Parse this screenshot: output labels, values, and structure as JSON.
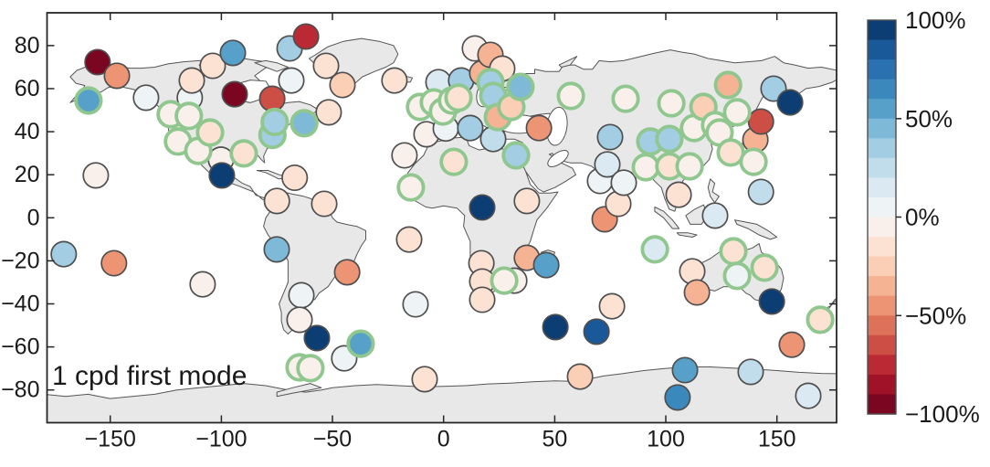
{
  "figure": {
    "annotation": "1 cpd first mode"
  },
  "axes": {
    "x_tick_labels": [
      "−150",
      "−100",
      "−50",
      "0",
      "50",
      "100",
      "150"
    ],
    "x_tick_values": [
      -150,
      -100,
      -50,
      0,
      50,
      100,
      150
    ],
    "y_tick_labels": [
      "80",
      "60",
      "40",
      "20",
      "0",
      "−20",
      "−40",
      "−60",
      "−80"
    ],
    "y_tick_values": [
      80,
      60,
      40,
      20,
      0,
      -20,
      -40,
      -60,
      -80
    ],
    "xlim": [
      -178.5,
      178.5
    ],
    "ylim": [
      -95.3,
      95.3
    ]
  },
  "colorbar": {
    "tick_labels": [
      "100%",
      "50%",
      "0%",
      "−50%",
      "−100%"
    ],
    "tick_values": [
      100,
      50,
      0,
      -50,
      -100
    ],
    "min": -100,
    "max": 100,
    "n_bins": 20,
    "palette_stops": [
      "#67001f",
      "#b2182b",
      "#d6604d",
      "#f4a582",
      "#fddbc7",
      "#f7f7f7",
      "#d1e5f0",
      "#92c5de",
      "#4393c3",
      "#2166ac",
      "#053061"
    ]
  },
  "map_colors": {
    "land": "#e8e8e8",
    "coast": "#555555",
    "ocean": "#ffffff",
    "frame": "#262626",
    "text": "#1a1a1a",
    "green_edge": "#8fc78f",
    "gray_edge": "#4f4f4f"
  },
  "chart_data": {
    "type": "scatter",
    "projection": "equirectangular world map",
    "title": "",
    "annotation": "1 cpd first mode",
    "value_unit": "%",
    "value_range": [
      -100,
      100
    ],
    "points": [
      {
        "lon": -170.9,
        "lat": -16.9,
        "value": 30,
        "edge": "gray"
      },
      {
        "lon": -159.8,
        "lat": 54.5,
        "value": 55,
        "edge": "green"
      },
      {
        "lon": -156.5,
        "lat": 19.7,
        "value": -5,
        "edge": "gray"
      },
      {
        "lon": -155.7,
        "lat": 72.3,
        "value": -95,
        "edge": "gray"
      },
      {
        "lon": -148.3,
        "lat": -21.1,
        "value": -42,
        "edge": "gray"
      },
      {
        "lon": -147.0,
        "lat": 66.0,
        "value": -45,
        "edge": "gray"
      },
      {
        "lon": -133.9,
        "lat": 55.8,
        "value": 8,
        "edge": "gray"
      },
      {
        "lon": -122.8,
        "lat": 48.1,
        "value": -6,
        "edge": "green"
      },
      {
        "lon": -119.5,
        "lat": 35.4,
        "value": -5,
        "edge": "green"
      },
      {
        "lon": -114.6,
        "lat": 47.3,
        "value": -8,
        "edge": "green"
      },
      {
        "lon": -114.2,
        "lat": 55.8,
        "value": 4,
        "edge": "gray"
      },
      {
        "lon": -113.3,
        "lat": 63.8,
        "value": -12,
        "edge": "gray"
      },
      {
        "lon": -110.4,
        "lat": 31.1,
        "value": -5,
        "edge": "green"
      },
      {
        "lon": -108.4,
        "lat": -30.9,
        "value": -5,
        "edge": "gray"
      },
      {
        "lon": -105.1,
        "lat": 39.6,
        "value": -15,
        "edge": "green"
      },
      {
        "lon": -103.9,
        "lat": 70.6,
        "value": -12,
        "edge": "gray"
      },
      {
        "lon": -100.2,
        "lat": 27.0,
        "value": -10,
        "edge": "gray"
      },
      {
        "lon": -99.8,
        "lat": 19.7,
        "value": 97,
        "edge": "gray"
      },
      {
        "lon": -94.8,
        "lat": 76.6,
        "value": 50,
        "edge": "gray"
      },
      {
        "lon": -94.0,
        "lat": 57.4,
        "value": -95,
        "edge": "gray"
      },
      {
        "lon": -89.9,
        "lat": 29.9,
        "value": -12,
        "edge": "green"
      },
      {
        "lon": -77.1,
        "lat": 55.3,
        "value": -65,
        "edge": "gray"
      },
      {
        "lon": -77.0,
        "lat": 38.5,
        "value": 30,
        "edge": "green"
      },
      {
        "lon": -76.0,
        "lat": 44.5,
        "value": 30,
        "edge": "green"
      },
      {
        "lon": -75.1,
        "lat": -14.7,
        "value": 45,
        "edge": "gray"
      },
      {
        "lon": -75.0,
        "lat": 7.8,
        "value": -20,
        "edge": "gray"
      },
      {
        "lon": -69.3,
        "lat": 78.7,
        "value": 35,
        "edge": "gray"
      },
      {
        "lon": -68.5,
        "lat": 63.8,
        "value": 8,
        "edge": "gray"
      },
      {
        "lon": -67.0,
        "lat": 18.6,
        "value": -12,
        "edge": "gray"
      },
      {
        "lon": -64.0,
        "lat": -36.0,
        "value": 5,
        "edge": "gray"
      },
      {
        "lon": -64.8,
        "lat": -47.4,
        "value": -8,
        "edge": "gray"
      },
      {
        "lon": -64.8,
        "lat": -69.5,
        "value": -2,
        "edge": "green"
      },
      {
        "lon": -61.9,
        "lat": 84.2,
        "value": -75,
        "edge": "gray"
      },
      {
        "lon": -62.7,
        "lat": 43.9,
        "value": 45,
        "edge": "green"
      },
      {
        "lon": -59.9,
        "lat": -69.9,
        "value": -2,
        "edge": "green"
      },
      {
        "lon": -57.0,
        "lat": -55.9,
        "value": 97,
        "edge": "gray"
      },
      {
        "lon": -53.7,
        "lat": 6.5,
        "value": -20,
        "edge": "gray"
      },
      {
        "lon": -52.9,
        "lat": 70.6,
        "value": -15,
        "edge": "gray"
      },
      {
        "lon": -51.7,
        "lat": 49.0,
        "value": -15,
        "edge": "gray"
      },
      {
        "lon": -45.5,
        "lat": 61.7,
        "value": -25,
        "edge": "gray"
      },
      {
        "lon": -44.7,
        "lat": -65.3,
        "value": 5,
        "edge": "gray"
      },
      {
        "lon": -43.4,
        "lat": -25.3,
        "value": -45,
        "edge": "gray"
      },
      {
        "lon": -37.3,
        "lat": -58.5,
        "value": 55,
        "edge": "green"
      },
      {
        "lon": -22.1,
        "lat": 63.8,
        "value": -20,
        "edge": "gray"
      },
      {
        "lon": -17.6,
        "lat": 29.0,
        "value": -5,
        "edge": "gray"
      },
      {
        "lon": -15.5,
        "lat": -10.1,
        "value": -12,
        "edge": "gray"
      },
      {
        "lon": -14.7,
        "lat": 14.1,
        "value": -10,
        "edge": "green"
      },
      {
        "lon": -12.6,
        "lat": -40.2,
        "value": 4,
        "edge": "gray"
      },
      {
        "lon": -10.6,
        "lat": 51.5,
        "value": -3,
        "edge": "green"
      },
      {
        "lon": -8.5,
        "lat": -75.0,
        "value": -12,
        "edge": "gray"
      },
      {
        "lon": -7.7,
        "lat": 38.8,
        "value": -8,
        "edge": "gray"
      },
      {
        "lon": -4.4,
        "lat": 53.6,
        "value": -3,
        "edge": "green"
      },
      {
        "lon": -2.3,
        "lat": 63.0,
        "value": 10,
        "edge": "gray"
      },
      {
        "lon": -0.3,
        "lat": 49.4,
        "value": -4,
        "edge": "green"
      },
      {
        "lon": 1.0,
        "lat": 41.5,
        "value": 8,
        "edge": "gray"
      },
      {
        "lon": 3.8,
        "lat": 54.5,
        "value": -10,
        "edge": "green"
      },
      {
        "lon": 4.6,
        "lat": 26.0,
        "value": -15,
        "edge": "green"
      },
      {
        "lon": 6.7,
        "lat": 55.8,
        "value": -15,
        "edge": "green"
      },
      {
        "lon": 7.9,
        "lat": 63.8,
        "value": 30,
        "edge": "gray"
      },
      {
        "lon": 12.0,
        "lat": 41.7,
        "value": 35,
        "edge": "gray"
      },
      {
        "lon": 14.1,
        "lat": 78.7,
        "value": -10,
        "edge": "gray"
      },
      {
        "lon": 17.0,
        "lat": -21.1,
        "value": -12,
        "edge": "gray"
      },
      {
        "lon": 17.4,
        "lat": 67.2,
        "value": -40,
        "edge": "gray"
      },
      {
        "lon": 17.4,
        "lat": 4.8,
        "value": 97,
        "edge": "gray"
      },
      {
        "lon": 17.4,
        "lat": -29.6,
        "value": -12,
        "edge": "gray"
      },
      {
        "lon": 17.4,
        "lat": -38.1,
        "value": -15,
        "edge": "gray"
      },
      {
        "lon": 21.1,
        "lat": 75.7,
        "value": -40,
        "edge": "gray"
      },
      {
        "lon": 21.1,
        "lat": 63.0,
        "value": 35,
        "edge": "green"
      },
      {
        "lon": 22.3,
        "lat": 56.6,
        "value": 30,
        "edge": "green"
      },
      {
        "lon": 22.3,
        "lat": 36.6,
        "value": 25,
        "edge": "gray"
      },
      {
        "lon": 24.4,
        "lat": 46.8,
        "value": -35,
        "edge": "green"
      },
      {
        "lon": 26.4,
        "lat": 69.3,
        "value": -20,
        "edge": "gray"
      },
      {
        "lon": 27.3,
        "lat": -29.2,
        "value": -2,
        "edge": "green"
      },
      {
        "lon": 30.5,
        "lat": 51.5,
        "value": -25,
        "edge": "green"
      },
      {
        "lon": 31.8,
        "lat": -29.2,
        "value": -5,
        "edge": "gray"
      },
      {
        "lon": 32.6,
        "lat": 29.0,
        "value": 30,
        "edge": "green"
      },
      {
        "lon": 34.6,
        "lat": 60.8,
        "value": 40,
        "edge": "green"
      },
      {
        "lon": 37.5,
        "lat": 7.8,
        "value": -15,
        "edge": "gray"
      },
      {
        "lon": 37.5,
        "lat": -18.6,
        "value": -40,
        "edge": "gray"
      },
      {
        "lon": 42.9,
        "lat": 41.7,
        "value": -45,
        "edge": "gray"
      },
      {
        "lon": 46.2,
        "lat": -22.0,
        "value": 50,
        "edge": "gray"
      },
      {
        "lon": 50.3,
        "lat": -50.8,
        "value": 97,
        "edge": "gray"
      },
      {
        "lon": 57.3,
        "lat": 56.6,
        "value": -5,
        "edge": "green"
      },
      {
        "lon": 61.4,
        "lat": -73.8,
        "value": -25,
        "edge": "gray"
      },
      {
        "lon": 68.8,
        "lat": -52.9,
        "value": 85,
        "edge": "gray"
      },
      {
        "lon": 70.4,
        "lat": 17.1,
        "value": 5,
        "edge": "gray"
      },
      {
        "lon": 72.5,
        "lat": -0.7,
        "value": -42,
        "edge": "gray"
      },
      {
        "lon": 73.7,
        "lat": 24.8,
        "value": 12,
        "edge": "gray"
      },
      {
        "lon": 74.9,
        "lat": 37.5,
        "value": 30,
        "edge": "gray"
      },
      {
        "lon": 75.8,
        "lat": -41.1,
        "value": -20,
        "edge": "gray"
      },
      {
        "lon": 78.6,
        "lat": 6.5,
        "value": -18,
        "edge": "gray"
      },
      {
        "lon": 81.1,
        "lat": 16.3,
        "value": 8,
        "edge": "gray"
      },
      {
        "lon": 81.9,
        "lat": 55.3,
        "value": -8,
        "edge": "green"
      },
      {
        "lon": 91.0,
        "lat": 23.5,
        "value": -8,
        "edge": "green"
      },
      {
        "lon": 93.0,
        "lat": 35.4,
        "value": 30,
        "edge": "green"
      },
      {
        "lon": 95.1,
        "lat": -14.7,
        "value": 10,
        "edge": "green"
      },
      {
        "lon": 101.6,
        "lat": 36.6,
        "value": 30,
        "edge": "green"
      },
      {
        "lon": 101.6,
        "lat": 23.9,
        "value": -12,
        "edge": "green"
      },
      {
        "lon": 102.5,
        "lat": 53.2,
        "value": -10,
        "edge": "green"
      },
      {
        "lon": 105.3,
        "lat": -83.5,
        "value": 62,
        "edge": "gray"
      },
      {
        "lon": 105.8,
        "lat": 10.7,
        "value": -20,
        "edge": "gray"
      },
      {
        "lon": 108.6,
        "lat": -70.8,
        "value": 55,
        "edge": "gray"
      },
      {
        "lon": 110.7,
        "lat": 23.9,
        "value": -8,
        "edge": "green"
      },
      {
        "lon": 111.9,
        "lat": -24.9,
        "value": -12,
        "edge": "gray"
      },
      {
        "lon": 112.7,
        "lat": 41.7,
        "value": -5,
        "edge": "green"
      },
      {
        "lon": 114.0,
        "lat": -34.7,
        "value": -40,
        "edge": "gray"
      },
      {
        "lon": 116.9,
        "lat": 51.5,
        "value": -25,
        "edge": "green"
      },
      {
        "lon": 122.2,
        "lat": 43.0,
        "value": -8,
        "edge": "green"
      },
      {
        "lon": 122.2,
        "lat": 1.0,
        "value": 18,
        "edge": "gray"
      },
      {
        "lon": 124.2,
        "lat": 39.6,
        "value": -5,
        "edge": "green"
      },
      {
        "lon": 128.0,
        "lat": 61.7,
        "value": -35,
        "edge": "green"
      },
      {
        "lon": 129.2,
        "lat": 30.3,
        "value": -12,
        "edge": "green"
      },
      {
        "lon": 130.4,
        "lat": -15.6,
        "value": -15,
        "edge": "green"
      },
      {
        "lon": 132.1,
        "lat": 49.0,
        "value": -10,
        "edge": "green"
      },
      {
        "lon": 132.1,
        "lat": -27.0,
        "value": 3,
        "edge": "green"
      },
      {
        "lon": 138.2,
        "lat": -71.6,
        "value": 25,
        "edge": "gray"
      },
      {
        "lon": 139.5,
        "lat": 26.0,
        "value": -4,
        "edge": "green"
      },
      {
        "lon": 140.3,
        "lat": 36.2,
        "value": -40,
        "edge": "gray"
      },
      {
        "lon": 142.8,
        "lat": 44.7,
        "value": -70,
        "edge": "gray"
      },
      {
        "lon": 142.8,
        "lat": 12.0,
        "value": 20,
        "edge": "gray"
      },
      {
        "lon": 144.4,
        "lat": -23.2,
        "value": -12,
        "edge": "green"
      },
      {
        "lon": 147.7,
        "lat": -38.9,
        "value": 97,
        "edge": "gray"
      },
      {
        "lon": 148.5,
        "lat": 60.0,
        "value": 35,
        "edge": "gray"
      },
      {
        "lon": 155.9,
        "lat": 53.6,
        "value": 95,
        "edge": "gray"
      },
      {
        "lon": 156.7,
        "lat": -59.0,
        "value": -45,
        "edge": "gray"
      },
      {
        "lon": 164.1,
        "lat": -82.7,
        "value": 10,
        "edge": "gray"
      },
      {
        "lon": 169.5,
        "lat": -47.4,
        "value": -20,
        "edge": "green"
      }
    ]
  }
}
